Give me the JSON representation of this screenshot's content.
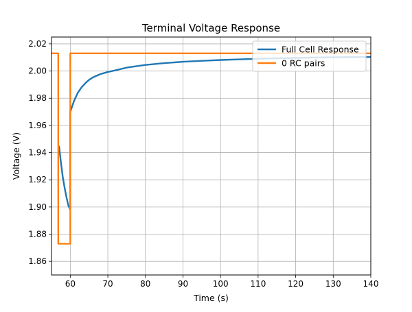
{
  "chart_data": {
    "type": "line",
    "title": "Terminal Voltage Response",
    "xlabel": "Time (s)",
    "ylabel": "Voltage (V)",
    "xlim": [
      55,
      140
    ],
    "ylim": [
      1.85,
      2.025
    ],
    "xticks": [
      60,
      70,
      80,
      90,
      100,
      110,
      120,
      130,
      140
    ],
    "yticks": [
      1.86,
      1.88,
      1.9,
      1.92,
      1.94,
      1.96,
      1.98,
      2.0,
      2.02
    ],
    "xtick_labels": [
      "60",
      "70",
      "80",
      "90",
      "100",
      "110",
      "120",
      "130",
      "140"
    ],
    "ytick_labels": [
      "1.86",
      "1.88",
      "1.90",
      "1.92",
      "1.94",
      "1.96",
      "1.98",
      "2.00",
      "2.02"
    ],
    "grid": true,
    "legend_position": "top-right",
    "series": [
      {
        "name": "Full Cell Response",
        "color": "#1f77b4",
        "x": [
          57.0,
          57.5,
          58.0,
          58.5,
          59.0,
          59.5,
          60.0,
          60.0,
          60.5,
          61,
          62,
          63,
          64,
          65,
          66,
          68,
          70,
          72,
          75,
          80,
          85,
          90,
          95,
          100,
          105,
          110,
          115,
          120,
          125,
          130,
          135,
          140
        ],
        "y": [
          1.945,
          1.933,
          1.922,
          1.914,
          1.907,
          1.901,
          1.898,
          1.97,
          1.974,
          1.978,
          1.984,
          1.988,
          1.991,
          1.9935,
          1.9953,
          1.9977,
          1.9993,
          2.0005,
          2.0025,
          2.0045,
          2.0058,
          2.0068,
          2.0075,
          2.0081,
          2.0086,
          2.009,
          2.0094,
          2.0096,
          2.0099,
          2.0101,
          2.0102,
          2.0103
        ]
      },
      {
        "name": "0 RC pairs",
        "color": "#ff7f0e",
        "x": [
          55,
          56.8,
          56.8,
          60.0,
          60.0,
          140
        ],
        "y": [
          2.013,
          2.013,
          1.873,
          1.873,
          2.013,
          2.013
        ]
      }
    ]
  }
}
